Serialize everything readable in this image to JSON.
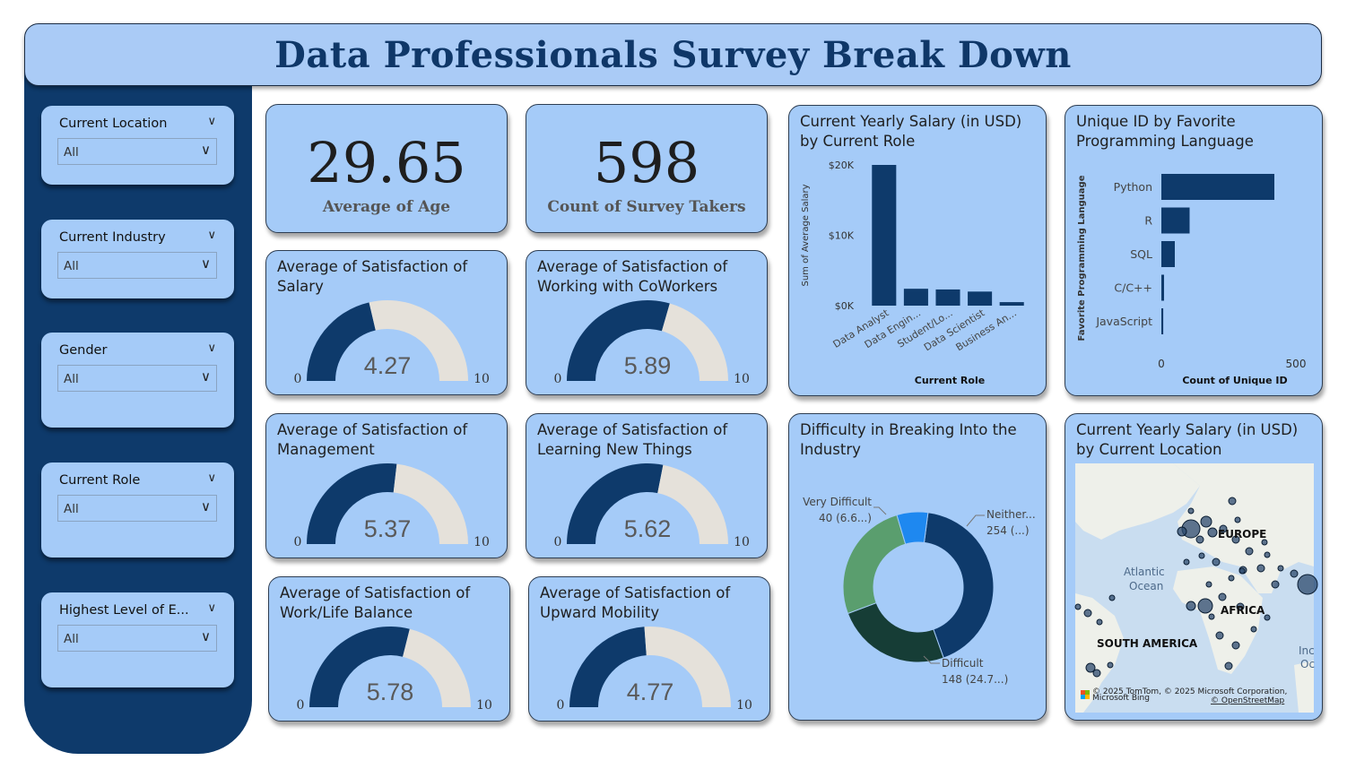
{
  "header": {
    "title": "Data Professionals Survey Break Down"
  },
  "slicers": [
    {
      "title": "Current Location",
      "value": "All"
    },
    {
      "title": "Current Industry",
      "value": "All"
    },
    {
      "title": "Gender",
      "value": "All"
    },
    {
      "title": "Current Role",
      "value": "All"
    },
    {
      "title": "Highest Level of E...",
      "value": "All"
    }
  ],
  "kpis": {
    "age": {
      "value": "29.65",
      "label": "Average of Age"
    },
    "count": {
      "value": "598",
      "label": "Count of Survey Takers"
    }
  },
  "gauges": [
    {
      "title": "Average of Satisfaction of Salary",
      "value": 4.27,
      "display": "4.27",
      "min": "0",
      "max": "10"
    },
    {
      "title": "Average of Satisfaction of Working with CoWorkers",
      "value": 5.89,
      "display": "5.89",
      "min": "0",
      "max": "10"
    },
    {
      "title": "Average of Satisfaction of Management",
      "value": 5.37,
      "display": "5.37",
      "min": "0",
      "max": "10"
    },
    {
      "title": "Average of Satisfaction of Learning New Things",
      "value": 5.62,
      "display": "5.62",
      "min": "0",
      "max": "10"
    },
    {
      "title": "Average of Satisfaction of Work/Life Balance",
      "value": 5.78,
      "display": "5.78",
      "min": "0",
      "max": "10"
    },
    {
      "title": "Average of Satisfaction of Upward Mobility",
      "value": 4.77,
      "display": "4.77",
      "min": "0",
      "max": "10"
    }
  ],
  "colors": {
    "navy": "#0e3a6b",
    "card": "#a5cbf8",
    "gauge_track": "#e5e1da",
    "donut_blue": "#1e88f0",
    "donut_green": "#5a9e6e",
    "donut_dark": "#163d36"
  },
  "chart_data": [
    {
      "type": "bar",
      "title": "Current Yearly Salary (in USD) by Current Role",
      "xlabel": "Current Role",
      "ylabel": "Sum of Average Salary",
      "categories": [
        "Data Analyst",
        "Data Engin...",
        "Student/Lo...",
        "Data Scientist",
        "Business An..."
      ],
      "values": [
        20000,
        2400,
        2300,
        2000,
        500
      ],
      "ylim": [
        0,
        20000
      ],
      "yticks": [
        "$0K",
        "$10K",
        "$20K"
      ]
    },
    {
      "type": "bar",
      "orientation": "horizontal",
      "title": "Unique ID by Favorite Programming Language",
      "xlabel": "Count of Unique ID",
      "ylabel": "Favorite Programming Language",
      "categories": [
        "Python",
        "R",
        "SQL",
        "C/C++",
        "JavaScript"
      ],
      "values": [
        420,
        105,
        50,
        10,
        7
      ],
      "xlim": [
        0,
        600
      ],
      "xticks": [
        "0",
        "500"
      ]
    },
    {
      "type": "pie",
      "title": "Difficulty in Breaking Into the Industry",
      "slices": [
        {
          "label": "Neither...",
          "value": 254,
          "data_label": "254 (...)"
        },
        {
          "label": "Difficult",
          "value": 148,
          "data_label": "148 (24.7...)"
        },
        {
          "label": "Very Difficult",
          "value": 40,
          "data_label": "40 (6.6...)"
        },
        {
          "label": "",
          "value": 156,
          "data_label": ""
        }
      ]
    }
  ],
  "map": {
    "title": "Current Yearly Salary (in USD) by Current Location",
    "labels": [
      "EUROPE",
      "AFRICA",
      "SOUTH AMERICA"
    ],
    "oceans": [
      "Atlantic",
      "Ocean",
      "Inc",
      "Oc"
    ],
    "attribution": "© 2025 TomTom, © 2025 Microsoft Corporation,",
    "attribution_link": "© OpenStreetMap",
    "bing": "Microsoft Bing"
  }
}
